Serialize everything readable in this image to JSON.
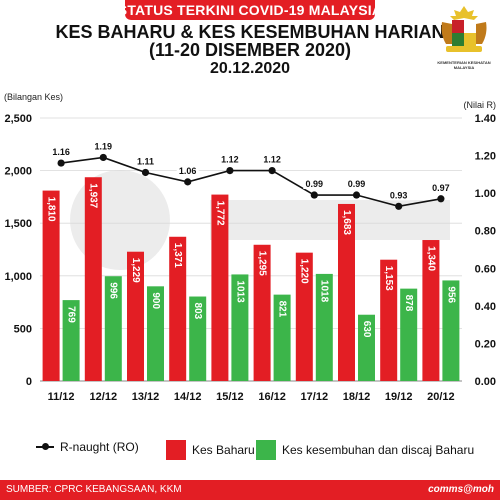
{
  "header": {
    "banner": "STATUS TERKINI COVID-19 MALAYSIA",
    "title_line1": "KES BAHARU & KES KESEMBUHAN HARIAN",
    "title_line2": "(11-20 DISEMBER 2020)",
    "date": "20.12.2020",
    "emblem_label": "KEMENTERIAN KESIHATAN MALAYSIA"
  },
  "footer": {
    "source": "SUMBER: CPRC KEBANGSAAN, KKM",
    "brand": "comms@moh"
  },
  "colors": {
    "red": "#e31e24",
    "green": "#3cb54a",
    "line": "#111111",
    "grid": "#d9d9d9"
  },
  "chart_data": {
    "type": "bar",
    "categories": [
      "11/12",
      "12/12",
      "13/12",
      "14/12",
      "15/12",
      "16/12",
      "17/12",
      "18/12",
      "19/12",
      "20/12"
    ],
    "series": [
      {
        "name": "Kes Baharu",
        "values": [
          1810,
          1937,
          1229,
          1371,
          1772,
          1295,
          1220,
          1683,
          1153,
          1340
        ],
        "labels": [
          "1,810",
          "1,937",
          "1,229",
          "1,371",
          "1,772",
          "1,295",
          "1,220",
          "1,683",
          "1,153",
          "1,340"
        ],
        "color": "#e31e24"
      },
      {
        "name": "Kes kesembuhan dan discaj Baharu",
        "values": [
          769,
          996,
          900,
          803,
          1013,
          821,
          1018,
          630,
          878,
          956
        ],
        "labels": [
          "769",
          "996",
          "900",
          "803",
          "1013",
          "821",
          "1018",
          "630",
          "878",
          "956"
        ],
        "color": "#3cb54a"
      }
    ],
    "line_series": {
      "name": "R-naught (RO)",
      "values": [
        1.16,
        1.19,
        1.11,
        1.06,
        1.12,
        1.12,
        0.99,
        0.99,
        0.93,
        0.97
      ],
      "labels": [
        "1.16",
        "1.19",
        "1.11",
        "1.06",
        "1.12",
        "1.12",
        "0.99",
        "0.99",
        "0.93",
        "0.97"
      ],
      "color": "#111111"
    },
    "ylabel": "(Bilangan Kes)",
    "y2label": "(Nilai R)",
    "ylim": [
      0,
      2500
    ],
    "y2lim": [
      0,
      1.4
    ],
    "yticks": [
      "0",
      "500",
      "1,000",
      "1,500",
      "2,000",
      "2,500"
    ],
    "y2ticks": [
      "0.00",
      "0.20",
      "0.40",
      "0.60",
      "0.80",
      "1.00",
      "1.20",
      "1.40"
    ],
    "grid": true,
    "legend_position": "bottom"
  }
}
